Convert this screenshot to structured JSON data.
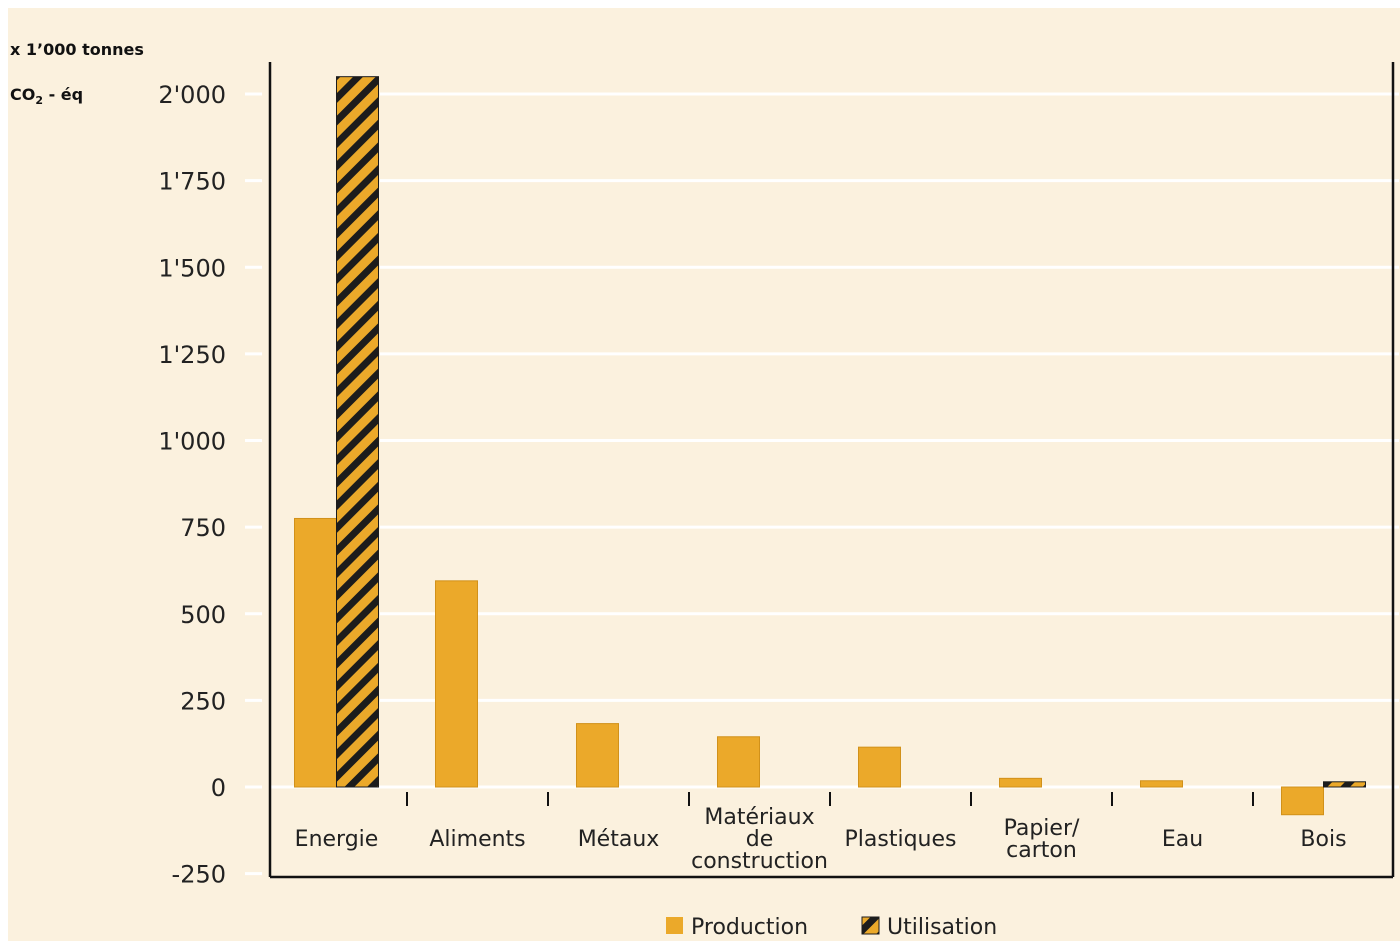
{
  "unit_label_line1": "x 1’000 tonnes",
  "unit_label_line2_main": "CO",
  "unit_label_line2_sub": "2",
  "unit_label_line2_rest": " - éq",
  "colors": {
    "background": "#fbf1de",
    "production": "#eba92a",
    "utilisation_stripe": "#1c1c1c",
    "gridline": "#ffffff",
    "axis": "#111111"
  },
  "chart_data": {
    "type": "bar",
    "categories": [
      [
        "Energie"
      ],
      [
        "Aliments"
      ],
      [
        "Métaux"
      ],
      [
        "Matériaux",
        "de",
        "construction"
      ],
      [
        "Plastiques"
      ],
      [
        "Papier/",
        "carton"
      ],
      [
        "Eau"
      ],
      [
        "Bois"
      ]
    ],
    "series": [
      {
        "name": "Production",
        "values": [
          775,
          595,
          183,
          145,
          115,
          25,
          18,
          -80
        ]
      },
      {
        "name": "Utilisation",
        "values": [
          2050,
          null,
          null,
          null,
          null,
          null,
          null,
          15
        ]
      }
    ],
    "yticks": [
      -250,
      0,
      250,
      500,
      750,
      1000,
      1250,
      1500,
      1750,
      2000
    ],
    "ytick_labels": [
      "-250",
      "0",
      "250",
      "500",
      "750",
      "1'000",
      "1'250",
      "1'500",
      "1'750",
      "2'000"
    ],
    "ylim": [
      -250,
      2080
    ],
    "grid": true,
    "legend": "bottom"
  }
}
